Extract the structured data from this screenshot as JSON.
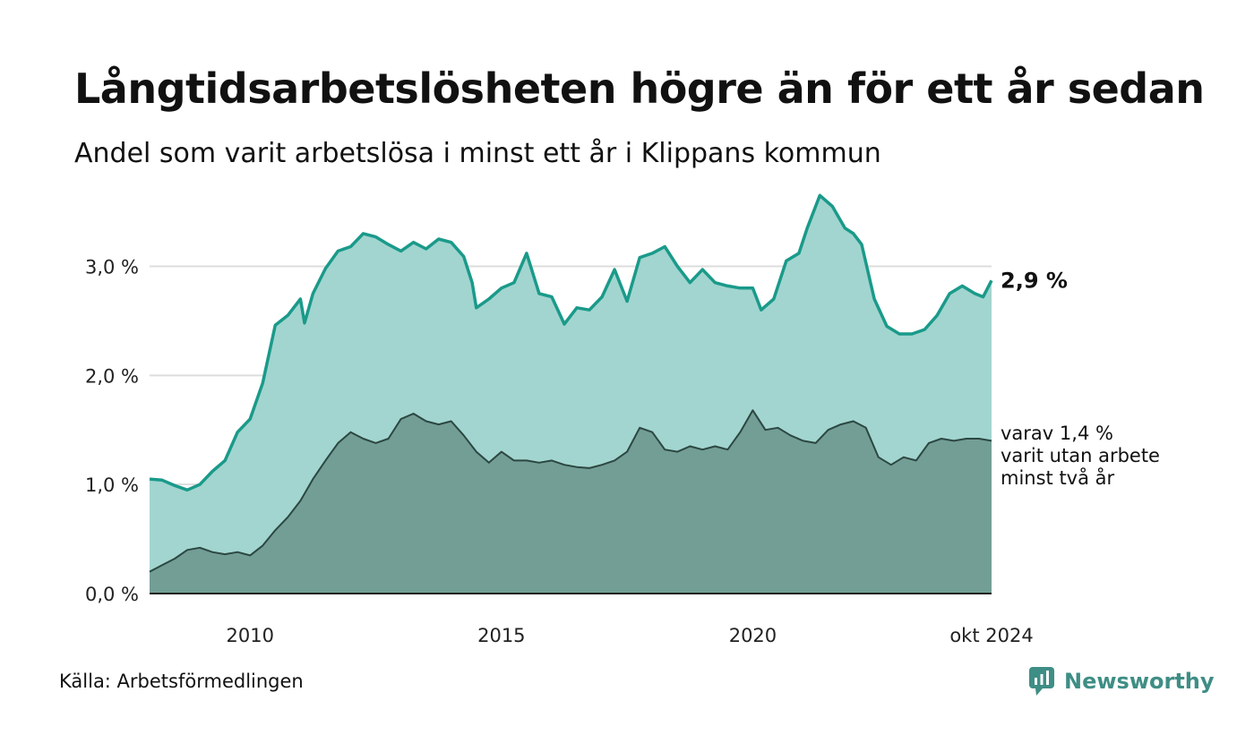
{
  "header": {
    "title": "Långtidsarbetslösheten högre än för ett år sedan",
    "subtitle": "Andel som varit arbetslösa i minst ett år i Klippans kommun"
  },
  "footer": {
    "source": "Källa: Arbetsförmedlingen",
    "brand": "Newsworthy",
    "brand_icon": "newsworthy-logo-icon"
  },
  "colors": {
    "series1_line": "#1a9a8a",
    "series1_fill": "#a2d5cf",
    "series2_line": "#2c4742",
    "series2_fill": "#729e96",
    "grid": "#dddddd",
    "brand": "#3e8e85"
  },
  "chart_data": {
    "type": "area",
    "x_start": "2008-01",
    "x_end": "2024-10",
    "ylim": [
      0,
      3.8
    ],
    "yticks": [
      {
        "value": 0,
        "label": "0,0 %"
      },
      {
        "value": 1,
        "label": "1,0 %"
      },
      {
        "value": 2,
        "label": "2,0 %"
      },
      {
        "value": 3,
        "label": "3,0 %"
      }
    ],
    "xticks": [
      {
        "value": "2010-01",
        "label": "2010"
      },
      {
        "value": "2015-01",
        "label": "2015"
      },
      {
        "value": "2020-01",
        "label": "2020"
      },
      {
        "value": "2024-10",
        "label": "okt 2024"
      }
    ],
    "grid": true,
    "annotations": [
      {
        "label": "2,9 %"
      },
      {
        "lines": [
          "varav 1,4 %",
          "varit utan arbete",
          "minst två år"
        ]
      }
    ],
    "series": [
      {
        "key": "minst_ett_ar",
        "points": [
          [
            "2008-01",
            1.05
          ],
          [
            "2008-04",
            1.04
          ],
          [
            "2008-07",
            0.99
          ],
          [
            "2008-10",
            0.95
          ],
          [
            "2009-01",
            1.0
          ],
          [
            "2009-04",
            1.12
          ],
          [
            "2009-07",
            1.22
          ],
          [
            "2009-10",
            1.48
          ],
          [
            "2010-01",
            1.6
          ],
          [
            "2010-04",
            1.93
          ],
          [
            "2010-07",
            2.46
          ],
          [
            "2010-10",
            2.55
          ],
          [
            "2011-01",
            2.7
          ],
          [
            "2011-02",
            2.48
          ],
          [
            "2011-04",
            2.75
          ],
          [
            "2011-07",
            2.98
          ],
          [
            "2011-10",
            3.14
          ],
          [
            "2012-01",
            3.18
          ],
          [
            "2012-04",
            3.3
          ],
          [
            "2012-07",
            3.27
          ],
          [
            "2012-10",
            3.2
          ],
          [
            "2013-01",
            3.14
          ],
          [
            "2013-04",
            3.22
          ],
          [
            "2013-07",
            3.16
          ],
          [
            "2013-10",
            3.25
          ],
          [
            "2014-01",
            3.22
          ],
          [
            "2014-04",
            3.09
          ],
          [
            "2014-06",
            2.85
          ],
          [
            "2014-07",
            2.62
          ],
          [
            "2014-10",
            2.7
          ],
          [
            "2015-01",
            2.8
          ],
          [
            "2015-04",
            2.85
          ],
          [
            "2015-07",
            3.12
          ],
          [
            "2015-10",
            2.75
          ],
          [
            "2016-01",
            2.72
          ],
          [
            "2016-04",
            2.47
          ],
          [
            "2016-07",
            2.62
          ],
          [
            "2016-10",
            2.6
          ],
          [
            "2017-01",
            2.72
          ],
          [
            "2017-04",
            2.97
          ],
          [
            "2017-07",
            2.68
          ],
          [
            "2017-10",
            3.08
          ],
          [
            "2018-01",
            3.12
          ],
          [
            "2018-04",
            3.18
          ],
          [
            "2018-07",
            3.0
          ],
          [
            "2018-10",
            2.85
          ],
          [
            "2019-01",
            2.97
          ],
          [
            "2019-04",
            2.85
          ],
          [
            "2019-07",
            2.82
          ],
          [
            "2019-10",
            2.8
          ],
          [
            "2020-01",
            2.8
          ],
          [
            "2020-03",
            2.6
          ],
          [
            "2020-06",
            2.7
          ],
          [
            "2020-09",
            3.05
          ],
          [
            "2020-12",
            3.12
          ],
          [
            "2021-02",
            3.35
          ],
          [
            "2021-05",
            3.65
          ],
          [
            "2021-08",
            3.55
          ],
          [
            "2021-11",
            3.35
          ],
          [
            "2022-01",
            3.3
          ],
          [
            "2022-03",
            3.2
          ],
          [
            "2022-06",
            2.7
          ],
          [
            "2022-09",
            2.45
          ],
          [
            "2022-12",
            2.38
          ],
          [
            "2023-03",
            2.38
          ],
          [
            "2023-06",
            2.42
          ],
          [
            "2023-09",
            2.55
          ],
          [
            "2023-12",
            2.75
          ],
          [
            "2024-03",
            2.82
          ],
          [
            "2024-06",
            2.75
          ],
          [
            "2024-08",
            2.72
          ],
          [
            "2024-10",
            2.87
          ]
        ]
      },
      {
        "key": "minst_tva_ar",
        "points": [
          [
            "2008-01",
            0.2
          ],
          [
            "2008-04",
            0.26
          ],
          [
            "2008-07",
            0.32
          ],
          [
            "2008-10",
            0.4
          ],
          [
            "2009-01",
            0.42
          ],
          [
            "2009-04",
            0.38
          ],
          [
            "2009-07",
            0.36
          ],
          [
            "2009-10",
            0.38
          ],
          [
            "2010-01",
            0.35
          ],
          [
            "2010-04",
            0.44
          ],
          [
            "2010-07",
            0.58
          ],
          [
            "2010-10",
            0.7
          ],
          [
            "2011-01",
            0.85
          ],
          [
            "2011-04",
            1.05
          ],
          [
            "2011-07",
            1.22
          ],
          [
            "2011-10",
            1.38
          ],
          [
            "2012-01",
            1.48
          ],
          [
            "2012-04",
            1.42
          ],
          [
            "2012-07",
            1.38
          ],
          [
            "2012-10",
            1.42
          ],
          [
            "2013-01",
            1.6
          ],
          [
            "2013-04",
            1.65
          ],
          [
            "2013-07",
            1.58
          ],
          [
            "2013-10",
            1.55
          ],
          [
            "2014-01",
            1.58
          ],
          [
            "2014-04",
            1.45
          ],
          [
            "2014-07",
            1.3
          ],
          [
            "2014-10",
            1.2
          ],
          [
            "2015-01",
            1.3
          ],
          [
            "2015-04",
            1.22
          ],
          [
            "2015-07",
            1.22
          ],
          [
            "2015-10",
            1.2
          ],
          [
            "2016-01",
            1.22
          ],
          [
            "2016-04",
            1.18
          ],
          [
            "2016-07",
            1.16
          ],
          [
            "2016-10",
            1.15
          ],
          [
            "2017-01",
            1.18
          ],
          [
            "2017-04",
            1.22
          ],
          [
            "2017-07",
            1.3
          ],
          [
            "2017-10",
            1.52
          ],
          [
            "2018-01",
            1.48
          ],
          [
            "2018-04",
            1.32
          ],
          [
            "2018-07",
            1.3
          ],
          [
            "2018-10",
            1.35
          ],
          [
            "2019-01",
            1.32
          ],
          [
            "2019-04",
            1.35
          ],
          [
            "2019-07",
            1.32
          ],
          [
            "2019-10",
            1.48
          ],
          [
            "2020-01",
            1.68
          ],
          [
            "2020-04",
            1.5
          ],
          [
            "2020-07",
            1.52
          ],
          [
            "2020-10",
            1.45
          ],
          [
            "2021-01",
            1.4
          ],
          [
            "2021-04",
            1.38
          ],
          [
            "2021-07",
            1.5
          ],
          [
            "2021-10",
            1.55
          ],
          [
            "2022-01",
            1.58
          ],
          [
            "2022-04",
            1.52
          ],
          [
            "2022-07",
            1.25
          ],
          [
            "2022-10",
            1.18
          ],
          [
            "2023-01",
            1.25
          ],
          [
            "2023-04",
            1.22
          ],
          [
            "2023-07",
            1.38
          ],
          [
            "2023-10",
            1.42
          ],
          [
            "2024-01",
            1.4
          ],
          [
            "2024-04",
            1.42
          ],
          [
            "2024-07",
            1.42
          ],
          [
            "2024-10",
            1.4
          ]
        ]
      }
    ]
  }
}
